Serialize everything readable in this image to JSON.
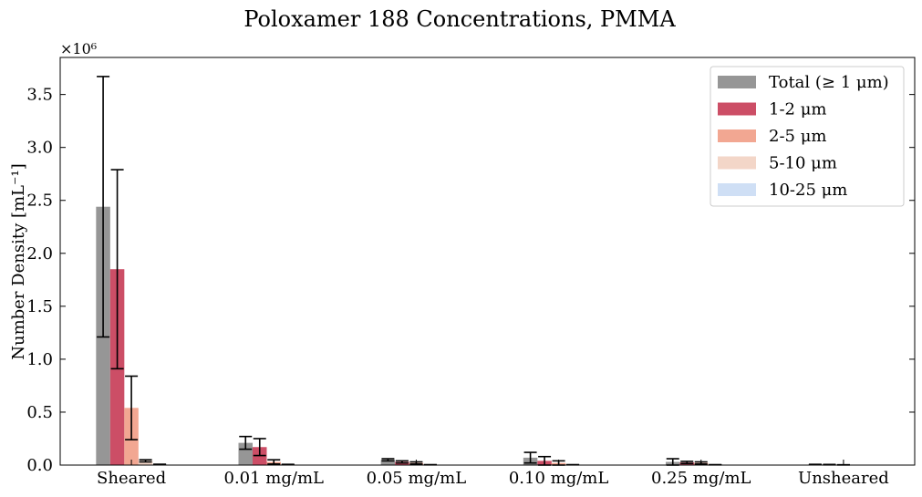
{
  "chart_data": {
    "type": "bar",
    "title": "Poloxamer 188 Concentrations, PMMA",
    "ylabel": "Number Density [mL⁻¹]",
    "xlabel": "",
    "y_multiplier_label": "×10⁶",
    "ylim": [
      0,
      3.85
    ],
    "yticks": [
      "0.0",
      "0.5",
      "1.0",
      "1.5",
      "2.0",
      "2.5",
      "3.0",
      "3.5"
    ],
    "y_unit": "×10⁶ mL⁻¹",
    "legend_position": "top-right",
    "categories": [
      "Sheared",
      "0.01 mg/mL",
      "0.05 mg/mL",
      "0.10 mg/mL",
      "0.25 mg/mL",
      "Unsheared"
    ],
    "series": [
      {
        "name": "Total (≥ 1 μm)",
        "color": "#969696",
        "values": [
          2.44,
          0.21,
          0.05,
          0.07,
          0.03,
          0.005
        ],
        "errors": [
          1.23,
          0.06,
          0.01,
          0.05,
          0.03,
          0.002
        ]
      },
      {
        "name": "1-2 μm",
        "color": "#cc4e66",
        "values": [
          1.85,
          0.17,
          0.03,
          0.04,
          0.025,
          0.004
        ],
        "errors": [
          0.94,
          0.08,
          0.01,
          0.04,
          0.01,
          0.002
        ]
      },
      {
        "name": "2-5 μm",
        "color": "#f2a792",
        "values": [
          0.54,
          0.03,
          0.02,
          0.02,
          0.02,
          0.002
        ],
        "errors": [
          0.3,
          0.02,
          0.01,
          0.02,
          0.01,
          0.001
        ]
      },
      {
        "name": "5-10 μm",
        "color": "#f3d6c8",
        "values": [
          0.04,
          0.005,
          0.003,
          0.003,
          0.003,
          0.001
        ],
        "errors": [
          0.01,
          0.002,
          0.001,
          0.001,
          0.001,
          0.0
        ]
      },
      {
        "name": "10-25 μm",
        "color": "#cfdff5",
        "values": [
          0.006,
          0.001,
          0.001,
          0.001,
          0.001,
          0.0
        ],
        "errors": [
          0.002,
          0.0,
          0.0,
          0.0,
          0.0,
          0.0
        ]
      }
    ]
  }
}
